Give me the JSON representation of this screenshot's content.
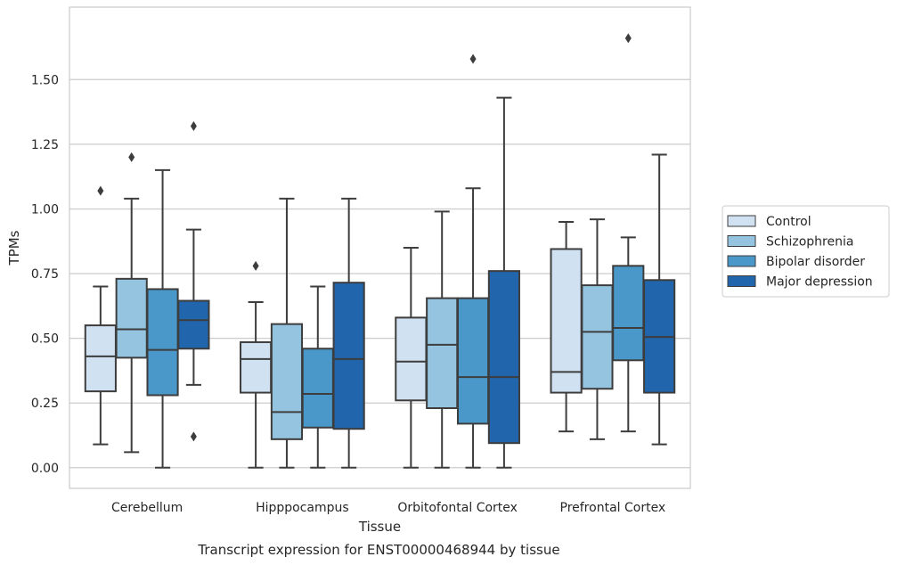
{
  "chart_data": {
    "type": "box",
    "xlabel": "Tissue",
    "ylabel": "TPMs",
    "caption": "Transcript expression for ENST00000468944 by tissue",
    "ylim": [
      -0.08,
      1.78
    ],
    "yticks": [
      "0.00",
      "0.25",
      "0.50",
      "0.75",
      "1.00",
      "1.25",
      "1.50"
    ],
    "grid": "horizontal",
    "legend_position": "right",
    "categories": [
      "Cerebellum",
      "Hipppocampus",
      "Orbitofontal Cortex",
      "Prefrontal Cortex"
    ],
    "series": [
      {
        "name": "Control",
        "color": "#d0e1f2",
        "boxes": [
          {
            "whislo": 0.09,
            "q1": 0.295,
            "med": 0.43,
            "q3": 0.55,
            "whishi": 0.7,
            "fliers": [
              1.07
            ]
          },
          {
            "whislo": 0.0,
            "q1": 0.29,
            "med": 0.42,
            "q3": 0.485,
            "whishi": 0.64,
            "fliers": [
              0.78
            ]
          },
          {
            "whislo": 0.0,
            "q1": 0.26,
            "med": 0.41,
            "q3": 0.58,
            "whishi": 0.85,
            "fliers": []
          },
          {
            "whislo": 0.14,
            "q1": 0.29,
            "med": 0.37,
            "q3": 0.845,
            "whishi": 0.95,
            "fliers": []
          }
        ]
      },
      {
        "name": "Schizophrenia",
        "color": "#94c4df",
        "boxes": [
          {
            "whislo": 0.06,
            "q1": 0.425,
            "med": 0.535,
            "q3": 0.73,
            "whishi": 1.04,
            "fliers": [
              1.2
            ]
          },
          {
            "whislo": 0.0,
            "q1": 0.11,
            "med": 0.215,
            "q3": 0.555,
            "whishi": 1.04,
            "fliers": []
          },
          {
            "whislo": 0.0,
            "q1": 0.23,
            "med": 0.475,
            "q3": 0.655,
            "whishi": 0.99,
            "fliers": []
          },
          {
            "whislo": 0.11,
            "q1": 0.305,
            "med": 0.525,
            "q3": 0.705,
            "whishi": 0.96,
            "fliers": []
          }
        ]
      },
      {
        "name": "Bipolar disorder",
        "color": "#4a98c9",
        "boxes": [
          {
            "whislo": 0.0,
            "q1": 0.28,
            "med": 0.455,
            "q3": 0.69,
            "whishi": 1.15,
            "fliers": []
          },
          {
            "whislo": 0.0,
            "q1": 0.155,
            "med": 0.285,
            "q3": 0.46,
            "whishi": 0.7,
            "fliers": []
          },
          {
            "whislo": 0.0,
            "q1": 0.17,
            "med": 0.35,
            "q3": 0.655,
            "whishi": 1.08,
            "fliers": [
              1.58
            ]
          },
          {
            "whislo": 0.14,
            "q1": 0.415,
            "med": 0.54,
            "q3": 0.78,
            "whishi": 0.89,
            "fliers": [
              1.66
            ]
          }
        ]
      },
      {
        "name": "Major depression",
        "color": "#2166ac",
        "boxes": [
          {
            "whislo": 0.32,
            "q1": 0.46,
            "med": 0.57,
            "q3": 0.645,
            "whishi": 0.92,
            "fliers": [
              0.12,
              1.32
            ]
          },
          {
            "whislo": 0.0,
            "q1": 0.15,
            "med": 0.42,
            "q3": 0.715,
            "whishi": 1.04,
            "fliers": []
          },
          {
            "whislo": 0.0,
            "q1": 0.095,
            "med": 0.35,
            "q3": 0.76,
            "whishi": 1.43,
            "fliers": []
          },
          {
            "whislo": 0.09,
            "q1": 0.29,
            "med": 0.505,
            "q3": 0.725,
            "whishi": 1.21,
            "fliers": []
          }
        ]
      }
    ]
  }
}
